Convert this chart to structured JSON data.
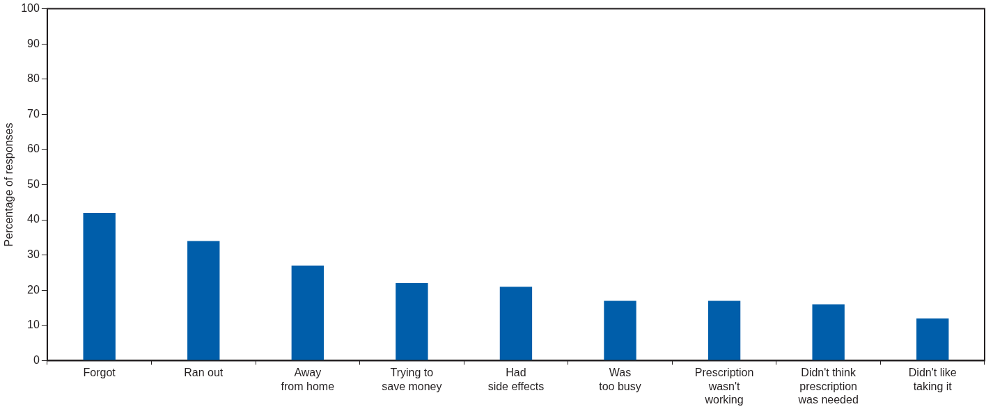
{
  "chart_data": {
    "type": "bar",
    "ylabel": "Percentage of responses",
    "categories": [
      "Forgot",
      "Ran out",
      "Away\nfrom home",
      "Trying to\nsave money",
      "Had\nside effects",
      "Was\ntoo busy",
      "Prescription\nwasn't\nworking",
      "Didn't think\nprescription\nwas needed",
      "Didn't like\ntaking it"
    ],
    "values": [
      42,
      34,
      27,
      22,
      21,
      17,
      17,
      16,
      12
    ],
    "color": "#005eaa",
    "ylim": [
      0,
      100
    ],
    "yticks": [
      0,
      10,
      20,
      30,
      40,
      50,
      60,
      70,
      80,
      90,
      100
    ],
    "legend": false
  }
}
